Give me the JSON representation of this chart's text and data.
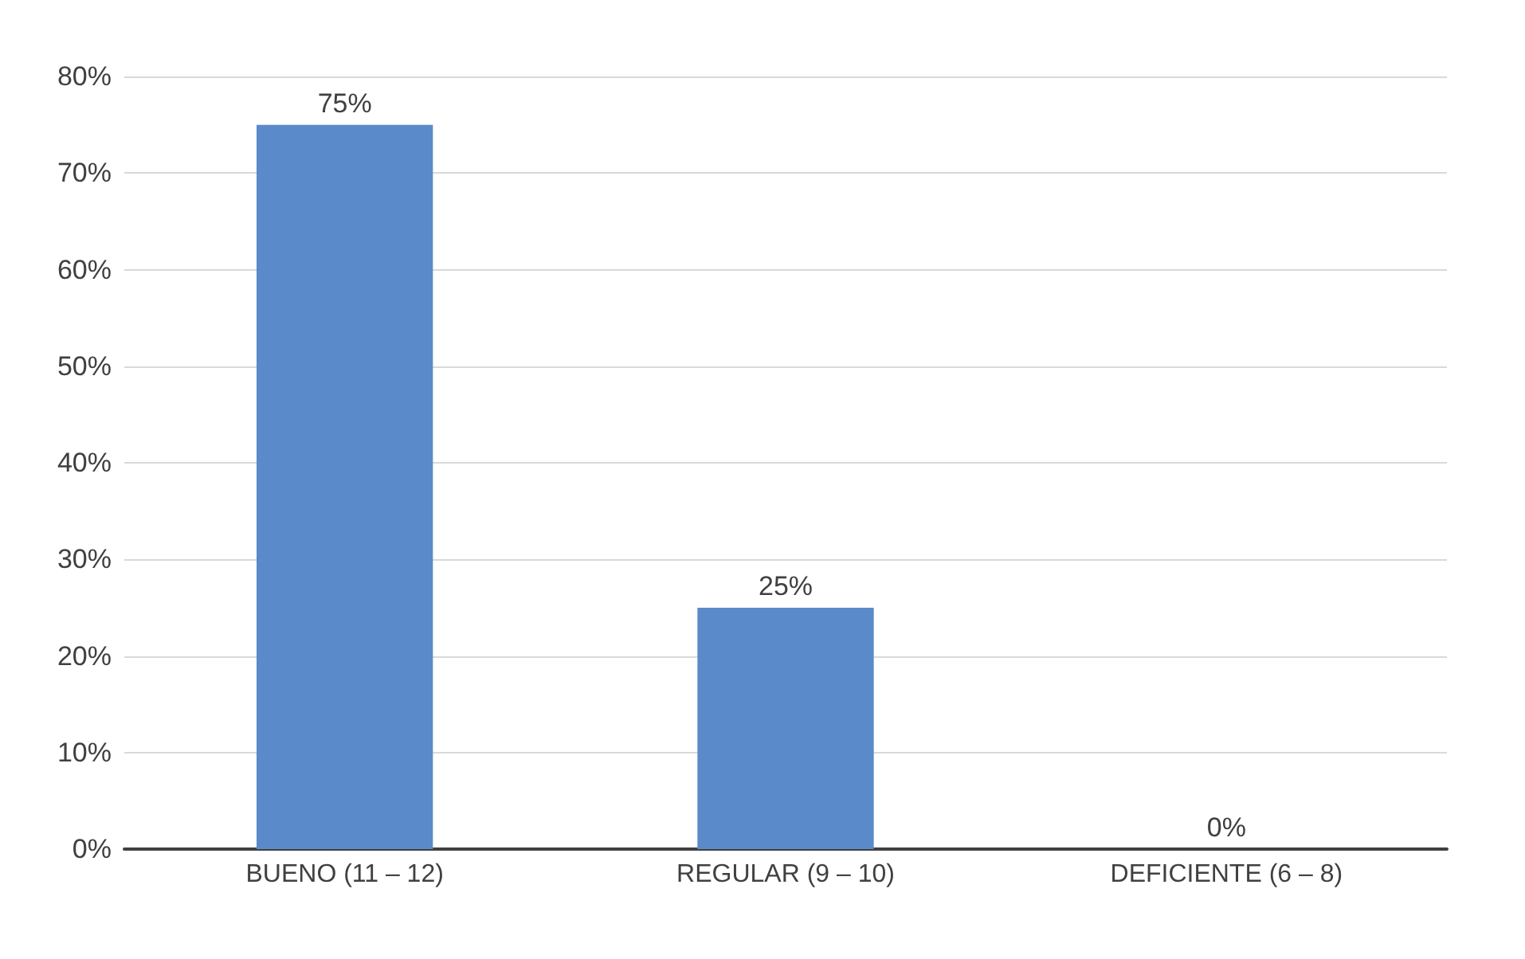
{
  "chart_data": {
    "type": "bar",
    "categories": [
      "BUENO (11 – 12)",
      "REGULAR (9 – 10)",
      "DEFICIENTE (6 – 8)"
    ],
    "values": [
      75,
      25,
      0
    ],
    "color": "#5a8ac9",
    "value_labels": [
      "75%",
      "25%",
      "0%"
    ],
    "ylim": [
      0,
      80
    ],
    "yticks": [
      {
        "value": 0,
        "label": "0%"
      },
      {
        "value": 10,
        "label": "10%"
      },
      {
        "value": 20,
        "label": "20%"
      },
      {
        "value": 30,
        "label": "30%"
      },
      {
        "value": 40,
        "label": "40%"
      },
      {
        "value": 50,
        "label": "50%"
      },
      {
        "value": 60,
        "label": "60%"
      },
      {
        "value": 70,
        "label": "70%"
      },
      {
        "value": 80,
        "label": "80%"
      }
    ],
    "grid": "y"
  }
}
